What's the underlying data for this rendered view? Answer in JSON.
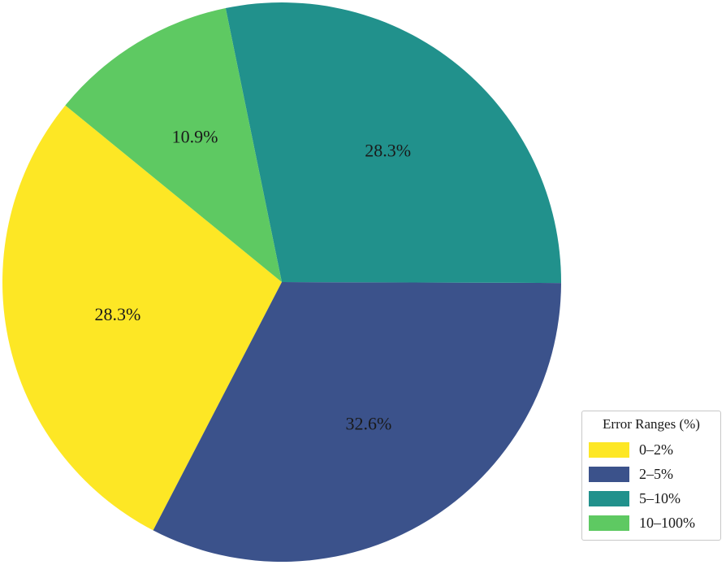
{
  "chart_data": {
    "type": "pie",
    "categories": [
      "0–2%",
      "2–5%",
      "5–10%",
      "10–100%"
    ],
    "values": [
      28.3,
      32.6,
      28.3,
      10.9
    ],
    "labels": [
      "28.3%",
      "32.6%",
      "28.3%",
      "10.9%"
    ],
    "colors": [
      "#fde725",
      "#3b528b",
      "#21918c",
      "#5ec962"
    ],
    "legend": {
      "title": "Error Ranges (%)",
      "placement": "bottom-right",
      "entries": [
        "0–2%",
        "2–5%",
        "5–10%",
        "10–100%"
      ]
    }
  }
}
